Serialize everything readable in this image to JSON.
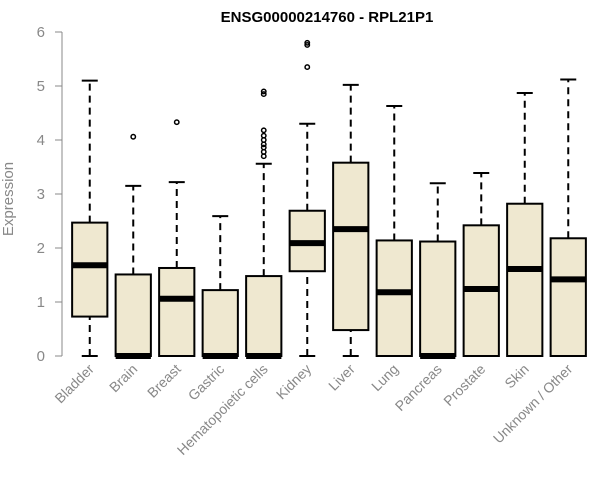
{
  "chart_data": {
    "type": "box",
    "title": "ENSG00000214760 - RPL21P1",
    "ylabel": "Expression",
    "ylim": [
      0,
      6
    ],
    "yticks": [
      0,
      1,
      2,
      3,
      4,
      5,
      6
    ],
    "box_fill": "#efe8d0",
    "box_stroke": "#000000",
    "categories": [
      "Bladder",
      "Brain",
      "Breast",
      "Gastric",
      "Hematopoietic cells",
      "Kidney",
      "Liver",
      "Lung",
      "Pancreas",
      "Prostate",
      "Skin",
      "Unknown / Other"
    ],
    "boxes": [
      {
        "whisker_low": 0,
        "q1": 0.73,
        "median": 1.68,
        "q3": 2.47,
        "whisker_high": 5.1,
        "outliers": []
      },
      {
        "whisker_low": 0,
        "q1": 0,
        "median": 0,
        "q3": 1.51,
        "whisker_high": 3.15,
        "outliers": [
          4.06
        ]
      },
      {
        "whisker_low": 0,
        "q1": 0,
        "median": 1.06,
        "q3": 1.63,
        "whisker_high": 3.22,
        "outliers": [
          4.33
        ]
      },
      {
        "whisker_low": 0,
        "q1": 0,
        "median": 0,
        "q3": 1.22,
        "whisker_high": 2.59,
        "outliers": []
      },
      {
        "whisker_low": 0,
        "q1": 0,
        "median": 0,
        "q3": 1.48,
        "whisker_high": 3.56,
        "outliers": [
          3.7,
          3.78,
          3.86,
          3.92,
          4.0,
          4.08,
          4.18,
          4.85,
          4.9
        ]
      },
      {
        "whisker_low": 0,
        "q1": 1.57,
        "median": 2.09,
        "q3": 2.69,
        "whisker_high": 4.3,
        "outliers": [
          5.35,
          5.76,
          5.8
        ]
      },
      {
        "whisker_low": 0,
        "q1": 0.48,
        "median": 2.35,
        "q3": 3.58,
        "whisker_high": 5.02,
        "outliers": []
      },
      {
        "whisker_low": 0,
        "q1": 0,
        "median": 1.18,
        "q3": 2.14,
        "whisker_high": 4.63,
        "outliers": []
      },
      {
        "whisker_low": 0,
        "q1": 0,
        "median": 0,
        "q3": 2.12,
        "whisker_high": 3.2,
        "outliers": []
      },
      {
        "whisker_low": 0,
        "q1": 0,
        "median": 1.24,
        "q3": 2.42,
        "whisker_high": 3.39,
        "outliers": []
      },
      {
        "whisker_low": 0,
        "q1": 0,
        "median": 1.61,
        "q3": 2.82,
        "whisker_high": 4.87,
        "outliers": []
      },
      {
        "whisker_low": 0,
        "q1": 0,
        "median": 1.42,
        "q3": 2.18,
        "whisker_high": 5.12,
        "outliers": []
      }
    ]
  }
}
